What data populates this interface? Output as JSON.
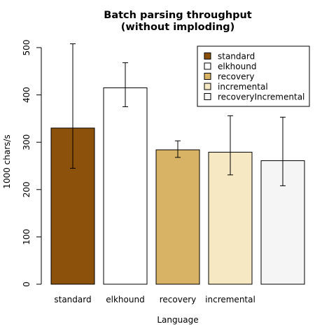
{
  "chart_data": {
    "type": "bar",
    "title_line1": "Batch parsing throughput",
    "title_line2": "(without imploding)",
    "xlabel": "Language",
    "ylabel": "1000 chars/s",
    "ylim": [
      0,
      500
    ],
    "yticks": [
      "0",
      "100",
      "200",
      "300",
      "400",
      "500"
    ],
    "grid": false,
    "legend_position": "top-right",
    "categories": [
      "standard",
      "elkhound",
      "recovery",
      "incremental",
      ""
    ],
    "series": [
      {
        "name": "standard",
        "value": 330,
        "err_low": 245,
        "err_high": 508,
        "color": "#8c510a"
      },
      {
        "name": "elkhound",
        "value": 415,
        "err_low": 375,
        "err_high": 468,
        "color": "#ffffff"
      },
      {
        "name": "recovery",
        "value": 284,
        "err_low": 268,
        "err_high": 303,
        "color": "#d8b365"
      },
      {
        "name": "incremental",
        "value": 279,
        "err_low": 231,
        "err_high": 356,
        "color": "#f6e8c3"
      },
      {
        "name": "recoveryIncremental",
        "value": 261,
        "err_low": 208,
        "err_high": 353,
        "color": "#f5f5f5"
      }
    ]
  }
}
